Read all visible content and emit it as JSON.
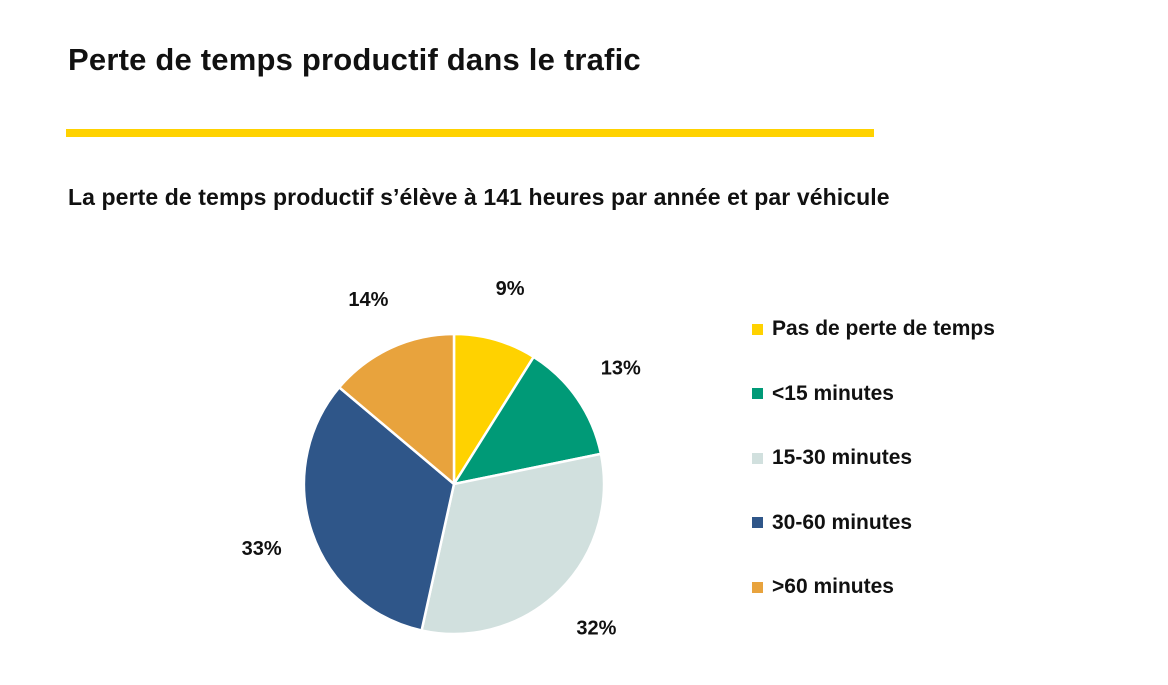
{
  "header": {
    "title": "Perte de temps productif dans le trafic",
    "accent_color": "#FFD200"
  },
  "subtitle": "La perte de temps productif s’élève à 141 heures par année et par véhicule",
  "chart_data": {
    "type": "pie",
    "title": "Perte de temps productif dans le trafic",
    "subtitle": "La perte de temps productif s’élève à 141 heures par année et par véhicule",
    "start_angle": "12 o'clock",
    "direction": "clockwise",
    "legend_position": "right",
    "slices": [
      {
        "label": "Pas de perte de temps",
        "value": 9,
        "display": "9%",
        "color": "#FFD200"
      },
      {
        "label": "<15 minutes",
        "value": 13,
        "display": "13%",
        "color": "#009A77"
      },
      {
        "label": "15-30 minutes",
        "value": 32,
        "display": "32%",
        "color": "#D1E0DE"
      },
      {
        "label": "30-60 minutes",
        "value": 33,
        "display": "33%",
        "color": "#2F5689"
      },
      {
        "label": ">60 minutes",
        "value": 14,
        "display": "14%",
        "color": "#E8A33D"
      }
    ]
  }
}
